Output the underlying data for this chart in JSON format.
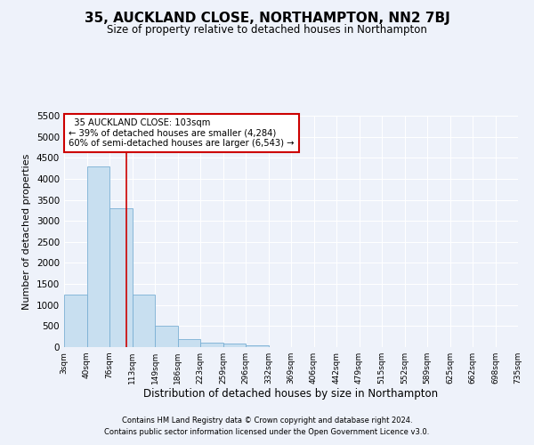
{
  "title": "35, AUCKLAND CLOSE, NORTHAMPTON, NN2 7BJ",
  "subtitle": "Size of property relative to detached houses in Northampton",
  "xlabel": "Distribution of detached houses by size in Northampton",
  "ylabel": "Number of detached properties",
  "annotation_title": "35 AUCKLAND CLOSE: 103sqm",
  "annotation_line1": "← 39% of detached houses are smaller (4,284)",
  "annotation_line2": "60% of semi-detached houses are larger (6,543) →",
  "footer_line1": "Contains HM Land Registry data © Crown copyright and database right 2024.",
  "footer_line2": "Contains public sector information licensed under the Open Government Licence v3.0.",
  "bin_labels": [
    "3sqm",
    "40sqm",
    "76sqm",
    "113sqm",
    "149sqm",
    "186sqm",
    "223sqm",
    "259sqm",
    "296sqm",
    "332sqm",
    "369sqm",
    "406sqm",
    "442sqm",
    "479sqm",
    "515sqm",
    "552sqm",
    "589sqm",
    "625sqm",
    "662sqm",
    "698sqm",
    "735sqm"
  ],
  "bar_values": [
    1250,
    4300,
    3300,
    1250,
    500,
    200,
    100,
    75,
    50,
    0,
    0,
    0,
    0,
    0,
    0,
    0,
    0,
    0,
    0,
    0
  ],
  "bar_color": "#c8dff0",
  "bar_edge_color": "#7aafd4",
  "property_line_color": "#cc0000",
  "ylim": [
    0,
    5500
  ],
  "yticks": [
    0,
    500,
    1000,
    1500,
    2000,
    2500,
    3000,
    3500,
    4000,
    4500,
    5000,
    5500
  ],
  "background_color": "#eef2fa",
  "grid_color": "#ffffff",
  "annotation_box_color": "#ffffff",
  "annotation_box_edge": "#cc0000"
}
